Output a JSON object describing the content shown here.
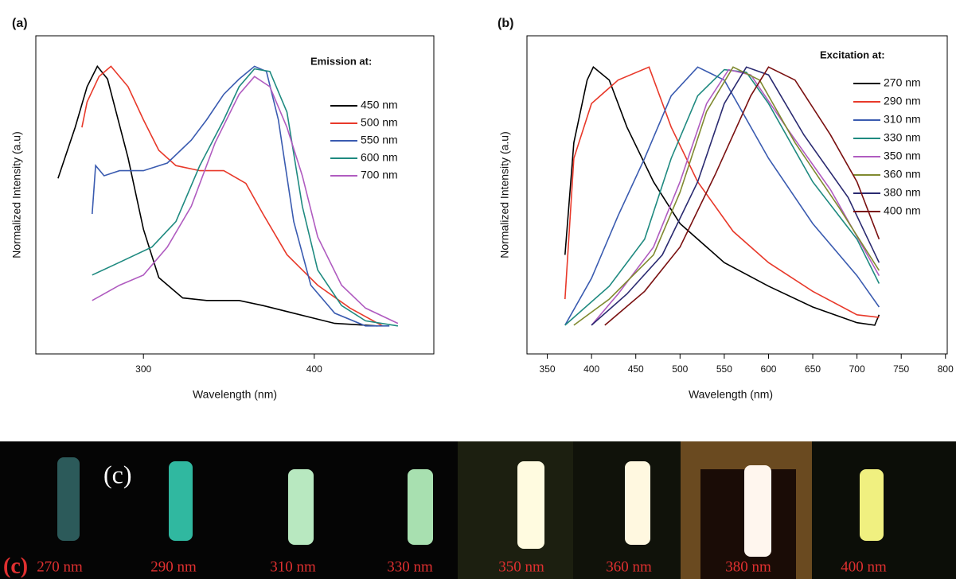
{
  "chart_data": [
    {
      "type": "line",
      "panel_label": "(a)",
      "legend_title": "Emission at:",
      "xlabel": "Wavelength (nm)",
      "ylabel": "Normalized Intensity (a.u)",
      "xlim": [
        237,
        470
      ],
      "xticks": [
        300,
        400
      ],
      "ylim": [
        -0.13,
        1.12
      ],
      "legend": "upper right",
      "series": [
        {
          "name": "450 nm",
          "color": "#000000",
          "x": [
            250,
            254,
            260,
            267,
            273,
            279,
            291,
            300,
            309,
            323,
            337,
            356,
            370,
            388,
            412,
            437
          ],
          "values": [
            0.56,
            0.64,
            0.76,
            0.92,
            1.0,
            0.95,
            0.64,
            0.36,
            0.17,
            0.09,
            0.08,
            0.08,
            0.06,
            0.03,
            -0.01,
            -0.02
          ]
        },
        {
          "name": "500 nm",
          "color": "#e8392a",
          "x": [
            264,
            267,
            274,
            281,
            291,
            300,
            309,
            319,
            333,
            347,
            360,
            370,
            384,
            402,
            421,
            440
          ],
          "values": [
            0.76,
            0.86,
            0.96,
            1.0,
            0.92,
            0.79,
            0.67,
            0.61,
            0.59,
            0.59,
            0.54,
            0.42,
            0.26,
            0.14,
            0.05,
            -0.02
          ]
        },
        {
          "name": "550 nm",
          "color": "#3a5bb0",
          "x": [
            270,
            272,
            277,
            286,
            300,
            314,
            328,
            337,
            347,
            356,
            365,
            372,
            379,
            388,
            398,
            412,
            430,
            444
          ],
          "values": [
            0.42,
            0.61,
            0.57,
            0.59,
            0.59,
            0.62,
            0.71,
            0.79,
            0.89,
            0.95,
            1.0,
            0.98,
            0.79,
            0.39,
            0.14,
            0.03,
            -0.02,
            -0.02
          ]
        },
        {
          "name": "600 nm",
          "color": "#1f8a80",
          "x": [
            270,
            286,
            305,
            319,
            333,
            347,
            356,
            365,
            374,
            384,
            393,
            402,
            416,
            430,
            449
          ],
          "values": [
            0.18,
            0.23,
            0.29,
            0.39,
            0.61,
            0.79,
            0.92,
            0.99,
            0.98,
            0.82,
            0.45,
            0.2,
            0.06,
            0.0,
            -0.02
          ]
        },
        {
          "name": "700 nm",
          "color": "#b05cc0",
          "x": [
            270,
            286,
            300,
            314,
            328,
            342,
            356,
            365,
            374,
            384,
            393,
            402,
            416,
            430,
            449
          ],
          "values": [
            0.08,
            0.14,
            0.18,
            0.29,
            0.45,
            0.7,
            0.89,
            0.96,
            0.92,
            0.76,
            0.57,
            0.33,
            0.14,
            0.05,
            -0.01
          ]
        }
      ]
    },
    {
      "type": "line",
      "panel_label": "(b)",
      "legend_title": "Excitation at:",
      "xlabel": "Wavelength (nm)",
      "ylabel": "Normalized Intensity (a.u)",
      "xlim": [
        327,
        802
      ],
      "xticks": [
        350,
        400,
        450,
        500,
        550,
        600,
        650,
        700,
        750,
        800
      ],
      "ylim": [
        -0.1,
        1.12
      ],
      "legend": "upper right",
      "series": [
        {
          "name": "270 nm",
          "color": "#000000",
          "x": [
            370,
            380,
            395,
            402,
            420,
            440,
            470,
            500,
            550,
            600,
            650,
            700,
            720,
            725
          ],
          "values": [
            0.28,
            0.71,
            0.95,
            1.0,
            0.95,
            0.77,
            0.56,
            0.4,
            0.25,
            0.16,
            0.08,
            0.02,
            0.01,
            0.05
          ]
        },
        {
          "name": "290 nm",
          "color": "#e8392a",
          "x": [
            370,
            380,
            400,
            430,
            465,
            490,
            520,
            560,
            600,
            650,
            700,
            725
          ],
          "values": [
            0.11,
            0.65,
            0.86,
            0.95,
            1.0,
            0.77,
            0.56,
            0.37,
            0.25,
            0.14,
            0.05,
            0.04
          ]
        },
        {
          "name": "310 nm",
          "color": "#3a5bb0",
          "x": [
            370,
            400,
            430,
            460,
            490,
            520,
            550,
            600,
            650,
            700,
            725
          ],
          "values": [
            0.01,
            0.19,
            0.43,
            0.65,
            0.89,
            1.0,
            0.95,
            0.65,
            0.4,
            0.2,
            0.08
          ]
        },
        {
          "name": "330 nm",
          "color": "#1f8a80",
          "x": [
            370,
            420,
            460,
            490,
            520,
            550,
            575,
            600,
            650,
            700,
            725
          ],
          "values": [
            0.01,
            0.16,
            0.34,
            0.65,
            0.89,
            0.99,
            0.98,
            0.86,
            0.56,
            0.34,
            0.17
          ]
        },
        {
          "name": "350 nm",
          "color": "#b05cc0",
          "x": [
            400,
            430,
            470,
            500,
            530,
            555,
            580,
            620,
            670,
            725
          ],
          "values": [
            0.01,
            0.13,
            0.31,
            0.56,
            0.86,
            0.99,
            0.97,
            0.77,
            0.53,
            0.2
          ]
        },
        {
          "name": "360 nm",
          "color": "#808a30",
          "x": [
            380,
            420,
            470,
            500,
            530,
            560,
            590,
            630,
            680,
            725
          ],
          "values": [
            0.01,
            0.11,
            0.28,
            0.52,
            0.83,
            1.0,
            0.95,
            0.71,
            0.46,
            0.22
          ]
        },
        {
          "name": "380 nm",
          "color": "#2a2a70",
          "x": [
            400,
            440,
            480,
            520,
            550,
            575,
            600,
            640,
            690,
            725
          ],
          "values": [
            0.01,
            0.13,
            0.28,
            0.56,
            0.86,
            1.0,
            0.97,
            0.74,
            0.5,
            0.25
          ]
        },
        {
          "name": "400 nm",
          "color": "#7a1010",
          "x": [
            415,
            460,
            500,
            540,
            580,
            600,
            630,
            670,
            700,
            725
          ],
          "values": [
            0.01,
            0.14,
            0.31,
            0.59,
            0.89,
            1.0,
            0.95,
            0.74,
            0.56,
            0.34
          ]
        }
      ]
    }
  ],
  "photo": {
    "label": "(c)",
    "corner_label": "(c)",
    "captions": [
      "270 nm",
      "290 nm",
      "310 nm",
      "330 nm",
      "350 nm",
      "360 nm",
      "380 nm",
      "400 nm"
    ]
  }
}
